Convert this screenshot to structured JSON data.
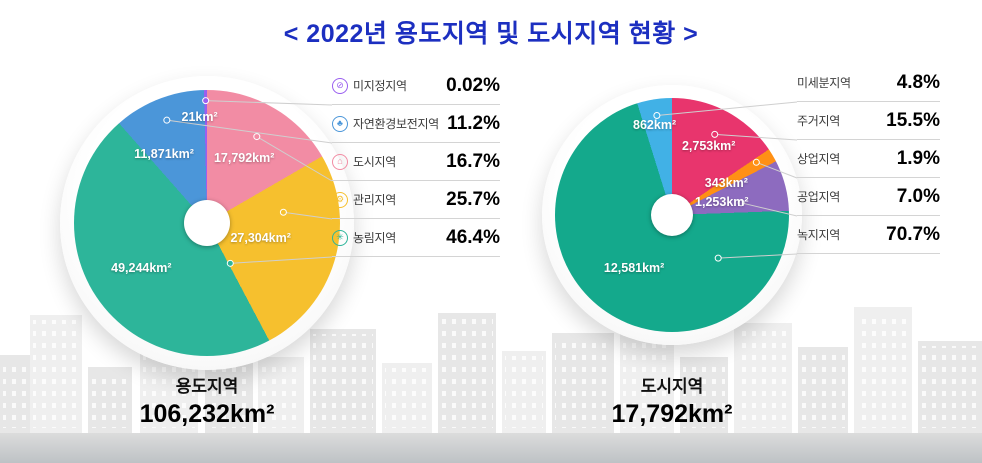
{
  "title": "<  2022년  용도지역  및  도시지역  현황  >",
  "chart_data": [
    {
      "type": "pie",
      "name": "용도지역",
      "total_label": "106,232km²",
      "legend_position": "right",
      "series": [
        {
          "name": "미지정지역",
          "percent": 0.02,
          "percent_label": "0.02%",
          "value_label": "21km²",
          "color": "#9a5ff0",
          "icon": "no-entry-icon"
        },
        {
          "name": "자연환경보전지역",
          "percent": 11.2,
          "percent_label": "11.2%",
          "value_label": "11,871km²",
          "color": "#4b96d9",
          "icon": "tree-icon"
        },
        {
          "name": "도시지역",
          "percent": 16.7,
          "percent_label": "16.7%",
          "value_label": "17,792km²",
          "color": "#f28ca4",
          "icon": "building-icon"
        },
        {
          "name": "관리지역",
          "percent": 25.7,
          "percent_label": "25.7%",
          "value_label": "27,304km²",
          "color": "#f6c02e",
          "icon": "gear-icon"
        },
        {
          "name": "농림지역",
          "percent": 46.4,
          "percent_label": "46.4%",
          "value_label": "49,244km²",
          "color": "#2db59a",
          "icon": "sprout-icon"
        }
      ]
    },
    {
      "type": "pie",
      "name": "도시지역",
      "total_label": "17,792km²",
      "legend_position": "right",
      "series": [
        {
          "name": "미세분지역",
          "percent": 4.8,
          "percent_label": "4.8%",
          "value_label": "862km²",
          "color": "#41b1e6"
        },
        {
          "name": "주거지역",
          "percent": 15.5,
          "percent_label": "15.5%",
          "value_label": "2,753km²",
          "color": "#e8356d"
        },
        {
          "name": "상업지역",
          "percent": 1.9,
          "percent_label": "1.9%",
          "value_label": "343km²",
          "color": "#ff9015"
        },
        {
          "name": "공업지역",
          "percent": 7.0,
          "percent_label": "7.0%",
          "value_label": "1,253km²",
          "color": "#8d6bbf"
        },
        {
          "name": "녹지지역",
          "percent": 70.7,
          "percent_label": "70.7%",
          "value_label": "12,581km²",
          "color": "#14a98c"
        }
      ]
    }
  ]
}
